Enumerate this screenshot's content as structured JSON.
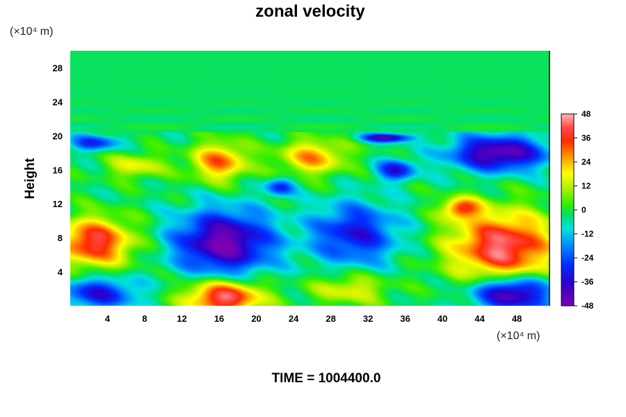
{
  "chart_data": {
    "type": "heatmap",
    "title": "zonal velocity",
    "xlabel": "",
    "ylabel": "Height",
    "x_unit": "(×10⁴ m)",
    "y_unit": "(×10⁴ m)",
    "xlim": [
      0,
      51.5
    ],
    "ylim": [
      0,
      30
    ],
    "x_ticks": [
      4,
      8,
      12,
      16,
      20,
      24,
      28,
      32,
      36,
      40,
      44,
      48
    ],
    "y_ticks": [
      4,
      8,
      12,
      16,
      20,
      24,
      28
    ],
    "colorbar": {
      "min": -48,
      "max": 48,
      "ticks": [
        48,
        36,
        24,
        12,
        0,
        -12,
        -24,
        -36,
        -48
      ]
    },
    "features": [
      {
        "x": 2.5,
        "y": 7.5,
        "value": 42,
        "rx": 4.0,
        "ry": 2.8
      },
      {
        "x": 16.5,
        "y": 7.5,
        "value": -46,
        "rx": 5.0,
        "ry": 3.6
      },
      {
        "x": 16.5,
        "y": 1.0,
        "value": 46,
        "rx": 4.0,
        "ry": 2.0
      },
      {
        "x": 30.5,
        "y": 8.5,
        "value": -30,
        "rx": 4.5,
        "ry": 3.5
      },
      {
        "x": 30.0,
        "y": 2.0,
        "value": 18,
        "rx": 4.0,
        "ry": 1.8
      },
      {
        "x": 46.5,
        "y": 7.0,
        "value": 46,
        "rx": 5.5,
        "ry": 4.0
      },
      {
        "x": 47.5,
        "y": 1.5,
        "value": -46,
        "rx": 4.0,
        "ry": 2.0
      },
      {
        "x": 3.0,
        "y": 1.5,
        "value": -30,
        "rx": 4.0,
        "ry": 1.8
      },
      {
        "x": 46.0,
        "y": 18.0,
        "value": -44,
        "rx": 5.0,
        "ry": 2.0
      },
      {
        "x": 16.0,
        "y": 17.0,
        "value": 32,
        "rx": 3.0,
        "ry": 2.2
      },
      {
        "x": 26.0,
        "y": 17.5,
        "value": 28,
        "rx": 3.5,
        "ry": 2.0
      },
      {
        "x": 35.0,
        "y": 16.0,
        "value": -30,
        "rx": 2.0,
        "ry": 1.2
      },
      {
        "x": 34.0,
        "y": 19.8,
        "value": -40,
        "rx": 2.5,
        "ry": 0.5
      },
      {
        "x": 7.0,
        "y": 16.5,
        "value": 18,
        "rx": 3.0,
        "ry": 1.5
      },
      {
        "x": 2.5,
        "y": 19.2,
        "value": -26,
        "rx": 2.5,
        "ry": 0.9
      },
      {
        "x": 22.5,
        "y": 14.0,
        "value": -26,
        "rx": 1.5,
        "ry": 1.0
      },
      {
        "x": 42.0,
        "y": 11.5,
        "value": 34,
        "rx": 2.0,
        "ry": 1.2
      }
    ]
  },
  "footer": {
    "time_label": "TIME = 1004400.0"
  }
}
